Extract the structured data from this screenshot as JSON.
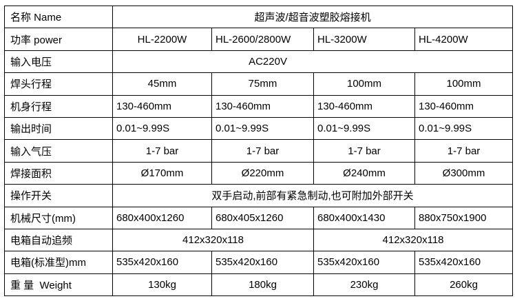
{
  "rows": {
    "name": {
      "label": "名称 Name",
      "value": "超声波/超音波塑胶熔接机"
    },
    "power": {
      "label": "功率 power",
      "values": [
        "HL-2200W",
        "HL-2600/2800W",
        "HL-3200W",
        "HL-4200W"
      ]
    },
    "voltage": {
      "label": "输入电压",
      "value": "AC220V"
    },
    "head_stroke": {
      "label": "焊头行程",
      "values": [
        "45mm",
        "75mm",
        "100mm",
        "100mm"
      ]
    },
    "body_stroke": {
      "label": "机身行程",
      "values": [
        "130-460mm",
        "130-460mm",
        "130-460mm",
        "130-460mm"
      ]
    },
    "output_time": {
      "label": "输出时间",
      "values": [
        "0.01~9.99S",
        "0.01~9.99S",
        "0.01~9.99S",
        "0.01~9.99S"
      ]
    },
    "air_pressure": {
      "label": "输入气压",
      "values": [
        "1-7 bar",
        "1-7 bar",
        "1-7 bar",
        "1-7 bar"
      ]
    },
    "weld_area": {
      "label": "焊接面积",
      "values": [
        "Ø170mm",
        "Ø220mm",
        "Ø240mm",
        "Ø300mm"
      ]
    },
    "operation": {
      "label": "操作开关",
      "value": "双手启动,前部有紧急制动,也可附加外部开关"
    },
    "machine_size": {
      "label": "机械尺寸(mm)",
      "values": [
        "680x400x1260",
        "680x405x1260",
        "680x400x1430",
        "880x750x1900"
      ]
    },
    "auto_freq_box": {
      "label": "电箱自动追频",
      "values": [
        "412x320x118",
        "412x320x118"
      ]
    },
    "std_box": {
      "label": "电箱(标准型)mm",
      "values": [
        "535x420x160",
        "535x420x160",
        "535x420x160",
        "535x420x160"
      ]
    },
    "weight": {
      "label": "重 量  Weight",
      "values": [
        "130kg",
        "180kg",
        "230kg",
        "260kg"
      ]
    }
  }
}
